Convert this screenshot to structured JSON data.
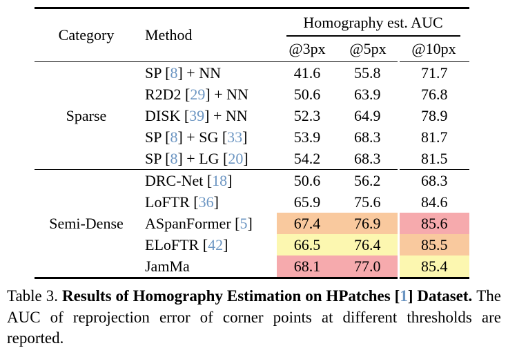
{
  "colors": {
    "cite": "#6b95c2",
    "rule": "#000000",
    "background": "#ffffff"
  },
  "table": {
    "header": {
      "category": "Category",
      "method": "Method",
      "span": "Homography est. AUC",
      "thresholds": [
        "@3px",
        "@5px",
        "@10px"
      ]
    },
    "highlight_colors": {
      "first": "#f6aaad",
      "second": "#f9c99e",
      "third": "#fcf7b0"
    },
    "groups": [
      {
        "category": "Sparse",
        "rows": [
          {
            "method": "SP [8] + NN",
            "values": [
              "41.6",
              "55.8",
              "71.7"
            ],
            "marks": [
              null,
              null,
              null
            ]
          },
          {
            "method": "R2D2 [29] + NN",
            "values": [
              "50.6",
              "63.9",
              "76.8"
            ],
            "marks": [
              null,
              null,
              null
            ]
          },
          {
            "method": "DISK [39] + NN",
            "values": [
              "52.3",
              "64.9",
              "78.9"
            ],
            "marks": [
              null,
              null,
              null
            ]
          },
          {
            "method": "SP [8] + SG [33]",
            "values": [
              "53.9",
              "68.3",
              "81.7"
            ],
            "marks": [
              null,
              null,
              null
            ]
          },
          {
            "method": "SP [8] + LG [20]",
            "values": [
              "54.2",
              "68.3",
              "81.5"
            ],
            "marks": [
              null,
              null,
              null
            ]
          }
        ]
      },
      {
        "category": "Semi-Dense",
        "rows": [
          {
            "method": "DRC-Net [18]",
            "values": [
              "50.6",
              "56.2",
              "68.3"
            ],
            "marks": [
              null,
              null,
              null
            ]
          },
          {
            "method": "LoFTR [36]",
            "values": [
              "65.9",
              "75.6",
              "84.6"
            ],
            "marks": [
              null,
              null,
              null
            ]
          },
          {
            "method": "ASpanFormer [5]",
            "values": [
              "67.4",
              "76.9",
              "85.6"
            ],
            "marks": [
              "second",
              "second",
              "first"
            ]
          },
          {
            "method": "ELoFTR [42]",
            "values": [
              "66.5",
              "76.4",
              "85.5"
            ],
            "marks": [
              "third",
              "third",
              "second"
            ]
          },
          {
            "method": "JamMa",
            "values": [
              "68.1",
              "77.0",
              "85.4"
            ],
            "marks": [
              "first",
              "first",
              "third"
            ]
          }
        ]
      }
    ]
  },
  "caption": {
    "label": "Table 3.",
    "bold": "Results of Homography Estimation on HPatches [1] Dataset.",
    "rest": "The AUC of reprojection error of corner points at different thresholds are reported."
  }
}
